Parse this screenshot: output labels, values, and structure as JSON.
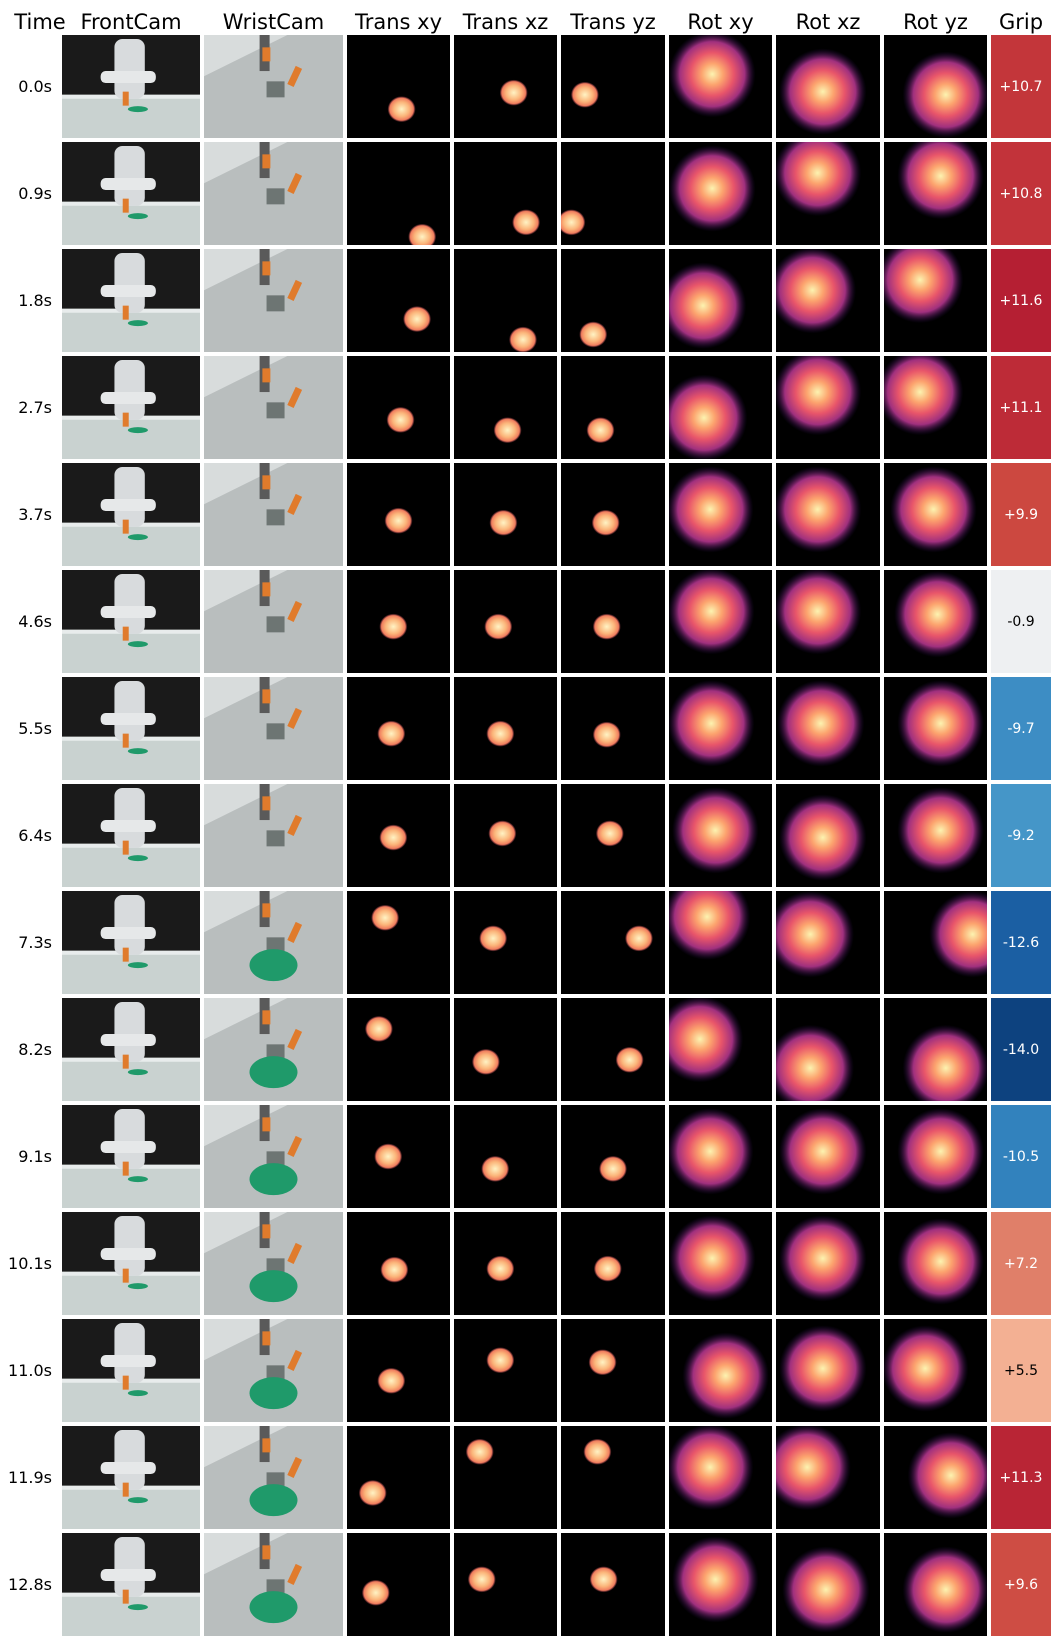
{
  "headers": {
    "time": "Time",
    "frontcam": "FrontCam",
    "wristcam": "WristCam",
    "trans_xy": "Trans xy",
    "trans_xz": "Trans xz",
    "trans_yz": "Trans yz",
    "rot_xy": "Rot xy",
    "rot_xz": "Rot xz",
    "rot_yz": "Rot yz",
    "grip": "Grip"
  },
  "rows": [
    {
      "time": "0.0s",
      "grip_label": "+10.7",
      "grip_value": 10.7,
      "grip_color": "#c3363a"
    },
    {
      "time": "0.9s",
      "grip_label": "+10.8",
      "grip_value": 10.8,
      "grip_color": "#c2333a"
    },
    {
      "time": "1.8s",
      "grip_label": "+11.6",
      "grip_value": 11.6,
      "grip_color": "#b51f33"
    },
    {
      "time": "2.7s",
      "grip_label": "+11.1",
      "grip_value": 11.1,
      "grip_color": "#bd2b37"
    },
    {
      "time": "3.7s",
      "grip_label": "+9.9",
      "grip_value": 9.9,
      "grip_color": "#cc4840"
    },
    {
      "time": "4.6s",
      "grip_label": "-0.9",
      "grip_value": -0.9,
      "grip_color": "#eef0f2"
    },
    {
      "time": "5.5s",
      "grip_label": "-9.7",
      "grip_value": -9.7,
      "grip_color": "#3d8dc4"
    },
    {
      "time": "6.4s",
      "grip_label": "-9.2",
      "grip_value": -9.2,
      "grip_color": "#4596c8"
    },
    {
      "time": "7.3s",
      "grip_label": "-12.6",
      "grip_value": -12.6,
      "grip_color": "#1b5fa3"
    },
    {
      "time": "8.2s",
      "grip_label": "-14.0",
      "grip_value": -14.0,
      "grip_color": "#0d427f"
    },
    {
      "time": "9.1s",
      "grip_label": "-10.5",
      "grip_value": -10.5,
      "grip_color": "#3282bd"
    },
    {
      "time": "10.1s",
      "grip_label": "+7.2",
      "grip_value": 7.2,
      "grip_color": "#e07f69"
    },
    {
      "time": "11.0s",
      "grip_label": "+5.5",
      "grip_value": 5.5,
      "grip_color": "#f3b093"
    },
    {
      "time": "11.9s",
      "grip_label": "+11.3",
      "grip_value": 11.3,
      "grip_color": "#b92535"
    },
    {
      "time": "12.8s",
      "grip_label": "+9.6",
      "grip_value": 9.6,
      "grip_color": "#ce4d44"
    }
  ],
  "trans_blobs": [
    {
      "xy": [
        0.53,
        0.72
      ],
      "xz": [
        0.58,
        0.56
      ],
      "yz": [
        0.23,
        0.58
      ]
    },
    {
      "xy": [
        0.73,
        0.92
      ],
      "xz": [
        0.7,
        0.78
      ],
      "yz": [
        0.1,
        0.78
      ]
    },
    {
      "xy": [
        0.68,
        0.68
      ],
      "xz": [
        0.67,
        0.88
      ],
      "yz": [
        0.31,
        0.83
      ]
    },
    {
      "xy": [
        0.52,
        0.62
      ],
      "xz": [
        0.52,
        0.72
      ],
      "yz": [
        0.38,
        0.72
      ]
    },
    {
      "xy": [
        0.5,
        0.56
      ],
      "xz": [
        0.48,
        0.58
      ],
      "yz": [
        0.43,
        0.58
      ]
    },
    {
      "xy": [
        0.45,
        0.55
      ],
      "xz": [
        0.43,
        0.55
      ],
      "yz": [
        0.44,
        0.55
      ]
    },
    {
      "xy": [
        0.43,
        0.55
      ],
      "xz": [
        0.45,
        0.55
      ],
      "yz": [
        0.44,
        0.56
      ]
    },
    {
      "xy": [
        0.45,
        0.52
      ],
      "xz": [
        0.47,
        0.48
      ],
      "yz": [
        0.47,
        0.48
      ]
    },
    {
      "xy": [
        0.37,
        0.26
      ],
      "xz": [
        0.38,
        0.46
      ],
      "yz": [
        0.75,
        0.46
      ]
    },
    {
      "xy": [
        0.31,
        0.3
      ],
      "xz": [
        0.31,
        0.62
      ],
      "yz": [
        0.66,
        0.6
      ]
    },
    {
      "xy": [
        0.4,
        0.5
      ],
      "xz": [
        0.4,
        0.62
      ],
      "yz": [
        0.5,
        0.62
      ]
    },
    {
      "xy": [
        0.46,
        0.56
      ],
      "xz": [
        0.45,
        0.55
      ],
      "yz": [
        0.45,
        0.55
      ]
    },
    {
      "xy": [
        0.43,
        0.6
      ],
      "xz": [
        0.45,
        0.4
      ],
      "yz": [
        0.4,
        0.42
      ]
    },
    {
      "xy": [
        0.25,
        0.65
      ],
      "xz": [
        0.25,
        0.25
      ],
      "yz": [
        0.35,
        0.25
      ]
    },
    {
      "xy": [
        0.28,
        0.58
      ],
      "xz": [
        0.27,
        0.45
      ],
      "yz": [
        0.41,
        0.45
      ]
    }
  ],
  "rot_blobs": [
    {
      "xy": [
        0.42,
        0.38
      ],
      "xz": [
        0.45,
        0.55
      ],
      "yz": [
        0.6,
        0.58
      ]
    },
    {
      "xy": [
        0.42,
        0.45
      ],
      "xz": [
        0.4,
        0.3
      ],
      "yz": [
        0.55,
        0.33
      ]
    },
    {
      "xy": [
        0.33,
        0.55
      ],
      "xz": [
        0.35,
        0.4
      ],
      "yz": [
        0.35,
        0.3
      ]
    },
    {
      "xy": [
        0.34,
        0.6
      ],
      "xz": [
        0.4,
        0.35
      ],
      "yz": [
        0.35,
        0.35
      ]
    },
    {
      "xy": [
        0.4,
        0.45
      ],
      "xz": [
        0.4,
        0.45
      ],
      "yz": [
        0.48,
        0.45
      ]
    },
    {
      "xy": [
        0.41,
        0.4
      ],
      "xz": [
        0.4,
        0.4
      ],
      "yz": [
        0.52,
        0.43
      ]
    },
    {
      "xy": [
        0.41,
        0.45
      ],
      "xz": [
        0.43,
        0.45
      ],
      "yz": [
        0.55,
        0.45
      ]
    },
    {
      "xy": [
        0.45,
        0.45
      ],
      "xz": [
        0.45,
        0.52
      ],
      "yz": [
        0.55,
        0.45
      ]
    },
    {
      "xy": [
        0.37,
        0.25
      ],
      "xz": [
        0.33,
        0.42
      ],
      "yz": [
        0.86,
        0.42
      ]
    },
    {
      "xy": [
        0.3,
        0.4
      ],
      "xz": [
        0.33,
        0.68
      ],
      "yz": [
        0.6,
        0.68
      ]
    },
    {
      "xy": [
        0.4,
        0.45
      ],
      "xz": [
        0.45,
        0.45
      ],
      "yz": [
        0.55,
        0.45
      ]
    },
    {
      "xy": [
        0.42,
        0.45
      ],
      "xz": [
        0.45,
        0.45
      ],
      "yz": [
        0.55,
        0.48
      ]
    },
    {
      "xy": [
        0.55,
        0.55
      ],
      "xz": [
        0.45,
        0.48
      ],
      "yz": [
        0.4,
        0.48
      ]
    },
    {
      "xy": [
        0.4,
        0.4
      ],
      "xz": [
        0.3,
        0.4
      ],
      "yz": [
        0.65,
        0.48
      ]
    },
    {
      "xy": [
        0.45,
        0.45
      ],
      "xz": [
        0.48,
        0.55
      ],
      "yz": [
        0.6,
        0.55
      ]
    }
  ]
}
